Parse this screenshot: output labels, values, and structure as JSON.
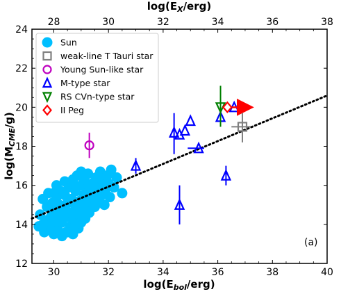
{
  "chart_data": {
    "type": "scatter",
    "xlabel_bottom": "log(E",
    "xlabel_bottom_sub": "bol",
    "xlabel_bottom_tail": "/erg)",
    "xlabel_top": "log(E",
    "xlabel_top_sub": "X",
    "xlabel_top_tail": "/erg)",
    "ylabel": "log(M",
    "ylabel_sub": "CME",
    "ylabel_tail": "/g)",
    "xlim_bottom": [
      29.2,
      40
    ],
    "xlim_top": [
      27.2,
      38
    ],
    "ylim": [
      12,
      24
    ],
    "xticks_bottom": [
      "30",
      "32",
      "34",
      "36",
      "38",
      "40"
    ],
    "xticks_top": [
      "28",
      "30",
      "32",
      "34",
      "36",
      "38"
    ],
    "yticks": [
      "12",
      "14",
      "16",
      "18",
      "20",
      "22",
      "24"
    ],
    "panel_label": "(a)",
    "legend_position": "top-left",
    "legend": [
      {
        "name": "Sun",
        "marker": "circle-filled",
        "color": "#00bfff"
      },
      {
        "name": "weak-line T Tauri star",
        "marker": "square",
        "color": "#808080"
      },
      {
        "name": "Young Sun-like star",
        "marker": "circle",
        "color": "#bf00bf"
      },
      {
        "name": "M-type star",
        "marker": "triangle-up",
        "color": "#0000ff"
      },
      {
        "name": "RS CVn-type star",
        "marker": "triangle-down",
        "color": "#008000"
      },
      {
        "name": "II Peg",
        "marker": "diamond",
        "color": "#ff0000"
      }
    ],
    "fit_line": {
      "x": [
        29.2,
        40
      ],
      "y": [
        14.3,
        20.6
      ],
      "style": "dotted",
      "color": "#000000"
    },
    "series": [
      {
        "name": "Sun",
        "marker": "circle-filled",
        "color": "#00bfff",
        "points": [
          [
            29.45,
            13.9
          ],
          [
            29.5,
            14.5
          ],
          [
            29.6,
            15.3
          ],
          [
            29.65,
            13.6
          ],
          [
            29.7,
            14.2
          ],
          [
            29.75,
            14.9
          ],
          [
            29.8,
            15.6
          ],
          [
            29.85,
            13.8
          ],
          [
            29.9,
            14.4
          ],
          [
            29.95,
            15.1
          ],
          [
            30.0,
            13.5
          ],
          [
            30.0,
            14.0
          ],
          [
            30.05,
            14.7
          ],
          [
            30.1,
            15.4
          ],
          [
            30.1,
            16.0
          ],
          [
            30.15,
            13.7
          ],
          [
            30.2,
            14.3
          ],
          [
            30.2,
            15.0
          ],
          [
            30.25,
            15.7
          ],
          [
            30.3,
            13.4
          ],
          [
            30.3,
            14.1
          ],
          [
            30.35,
            14.8
          ],
          [
            30.4,
            15.5
          ],
          [
            30.4,
            16.2
          ],
          [
            30.45,
            13.6
          ],
          [
            30.5,
            14.4
          ],
          [
            30.5,
            15.1
          ],
          [
            30.55,
            15.9
          ],
          [
            30.6,
            13.9
          ],
          [
            30.6,
            14.6
          ],
          [
            30.65,
            15.3
          ],
          [
            30.7,
            16.1
          ],
          [
            30.7,
            13.5
          ],
          [
            30.75,
            14.2
          ],
          [
            30.8,
            14.9
          ],
          [
            30.8,
            15.7
          ],
          [
            30.85,
            16.5
          ],
          [
            30.9,
            13.8
          ],
          [
            30.9,
            14.5
          ],
          [
            30.95,
            15.2
          ],
          [
            31.0,
            16.0
          ],
          [
            31.0,
            14.1
          ],
          [
            31.05,
            14.8
          ],
          [
            31.1,
            15.5
          ],
          [
            31.1,
            16.3
          ],
          [
            31.15,
            14.3
          ],
          [
            31.2,
            15.0
          ],
          [
            31.2,
            15.8
          ],
          [
            31.25,
            16.6
          ],
          [
            31.3,
            14.6
          ],
          [
            31.35,
            15.3
          ],
          [
            31.4,
            16.1
          ],
          [
            31.45,
            14.9
          ],
          [
            31.5,
            15.6
          ],
          [
            31.55,
            16.4
          ],
          [
            31.6,
            15.2
          ],
          [
            31.65,
            15.9
          ],
          [
            31.7,
            16.7
          ],
          [
            31.75,
            15.5
          ],
          [
            31.8,
            16.2
          ],
          [
            31.85,
            15.0
          ],
          [
            31.9,
            15.8
          ],
          [
            31.95,
            16.5
          ],
          [
            32.0,
            16.1
          ],
          [
            32.05,
            15.4
          ],
          [
            32.1,
            16.8
          ],
          [
            32.2,
            15.9
          ],
          [
            32.3,
            16.4
          ],
          [
            32.5,
            15.6
          ],
          [
            31.0,
            16.7
          ],
          [
            30.3,
            14.6
          ],
          [
            30.8,
            14.0
          ],
          [
            31.3,
            15.9
          ],
          [
            30.0,
            15.6
          ],
          [
            29.6,
            14.0
          ],
          [
            30.5,
            13.6
          ],
          [
            31.5,
            14.9
          ],
          [
            30.7,
            16.3
          ],
          [
            29.9,
            13.7
          ],
          [
            31.1,
            14.5
          ]
        ]
      },
      {
        "name": "weak-line T Tauri star",
        "marker": "square",
        "color": "#808080",
        "points": [
          [
            36.9,
            19.0
          ]
        ],
        "xerr": [
          [
            36.5,
            37.2
          ]
        ],
        "yerr": [
          [
            18.2,
            19.7
          ]
        ]
      },
      {
        "name": "Young Sun-like star",
        "marker": "circle",
        "color": "#bf00bf",
        "points": [
          [
            31.3,
            18.05
          ]
        ],
        "yerr": [
          [
            17.4,
            18.7
          ]
        ]
      },
      {
        "name": "M-type star",
        "marker": "triangle-up",
        "color": "#0000ff",
        "points": [
          [
            33.0,
            17.0
          ],
          [
            34.4,
            18.7
          ],
          [
            34.6,
            18.6
          ],
          [
            34.8,
            18.8
          ],
          [
            35.0,
            19.3
          ],
          [
            35.3,
            17.9
          ],
          [
            34.6,
            15.0
          ],
          [
            36.3,
            16.5
          ],
          [
            36.1,
            19.5
          ],
          [
            36.6,
            20.0
          ]
        ],
        "yerr": [
          [
            16.6,
            17.4
          ],
          [
            17.6,
            19.7
          ],
          null,
          null,
          null,
          null,
          [
            14.0,
            16.0
          ],
          [
            16.0,
            17.0
          ],
          null,
          null
        ],
        "xerr": [
          null,
          null,
          null,
          null,
          null,
          [
            34.9,
            35.5
          ],
          null,
          null,
          null,
          null
        ]
      },
      {
        "name": "RS CVn-type star",
        "marker": "triangle-down",
        "color": "#008000",
        "points": [
          [
            36.1,
            20.0
          ]
        ],
        "yerr": [
          [
            19.0,
            21.1
          ]
        ]
      },
      {
        "name": "II Peg",
        "marker": "diamond",
        "color": "#ff0000",
        "points": [
          [
            36.35,
            20.0
          ]
        ],
        "arrow_to_x": 37.2
      }
    ]
  }
}
